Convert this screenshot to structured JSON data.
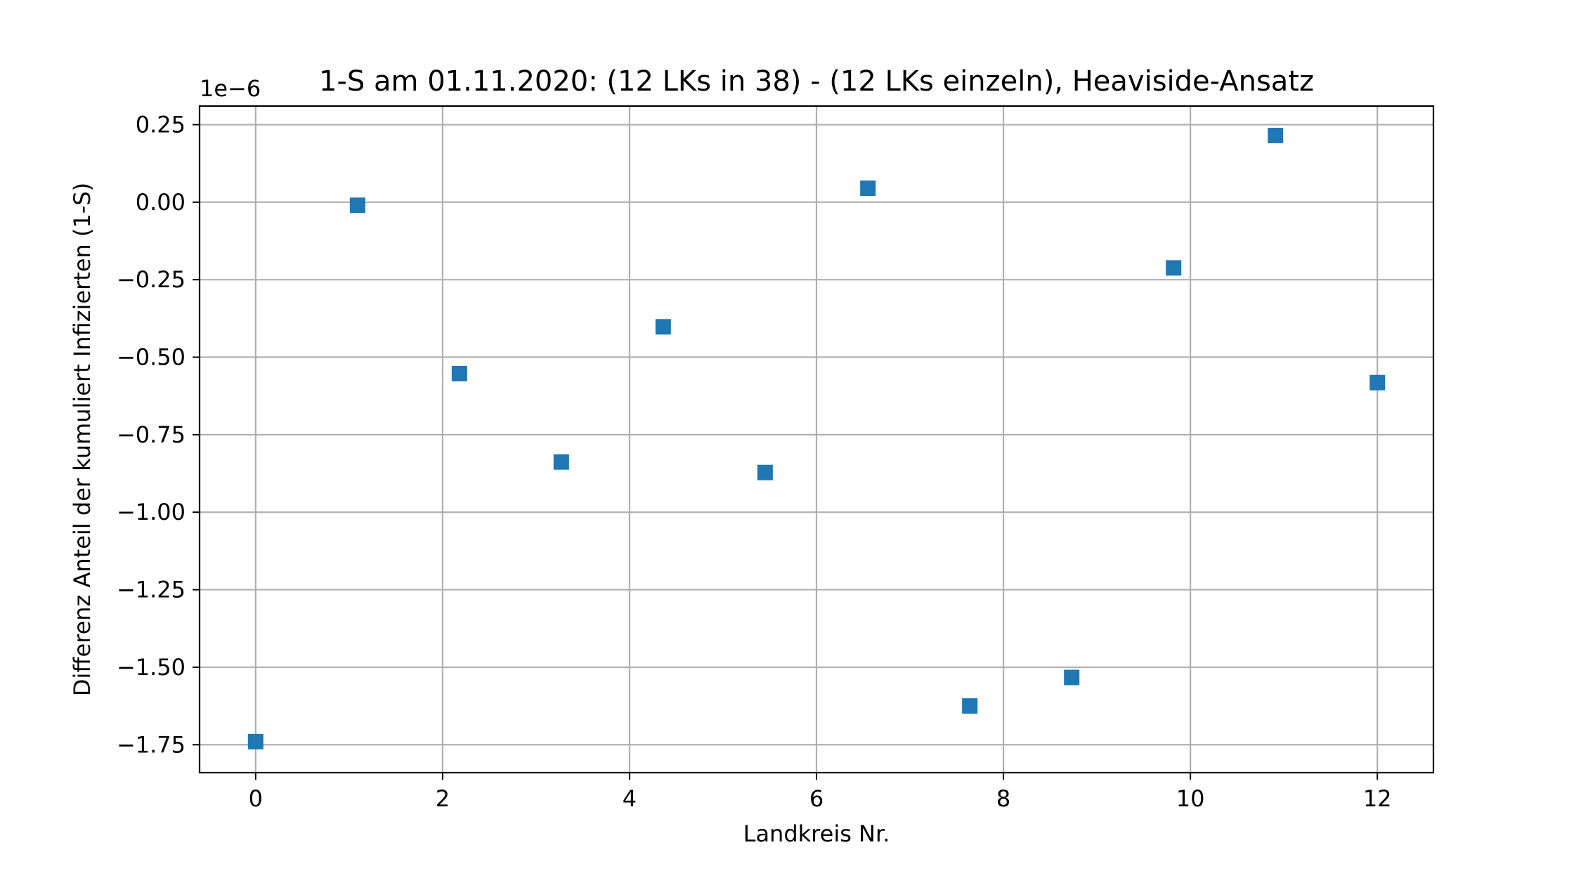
{
  "chart_data": {
    "type": "scatter",
    "title": "1-S am 01.11.2020: (12 LKs in 38) - (12 LKs einzeln), Heaviside-Ansatz",
    "xlabel": "Landkreis Nr.",
    "ylabel": "Differenz Anteil der kumuliert Infizierten (1-S)",
    "y_offset_label": "1e−6",
    "xlim": [
      -0.6,
      12.6
    ],
    "ylim": [
      -1.84,
      0.31
    ],
    "grid": true,
    "marker": "square",
    "color": "#1f77b4",
    "x_ticks": [
      0,
      2,
      4,
      6,
      8,
      10,
      12
    ],
    "x_tick_labels": [
      "0",
      "2",
      "4",
      "6",
      "8",
      "10",
      "12"
    ],
    "y_ticks": [
      0.25,
      0.0,
      -0.25,
      -0.5,
      -0.75,
      -1.0,
      -1.25,
      -1.5,
      -1.75
    ],
    "y_tick_labels": [
      "0.25",
      "0.00",
      "−0.25",
      "−0.50",
      "−0.75",
      "−1.00",
      "−1.25",
      "−1.50",
      "−1.75"
    ],
    "series": [
      {
        "x": [
          0,
          1.09,
          2.18,
          3.27,
          4.36,
          5.45,
          6.55,
          7.64,
          8.73,
          9.82,
          10.91,
          12
        ],
        "y": [
          -1.74,
          -0.01,
          -0.553,
          -0.838,
          -0.402,
          -0.872,
          0.045,
          -1.625,
          -1.533,
          -0.212,
          0.215,
          -0.582
        ]
      }
    ]
  }
}
